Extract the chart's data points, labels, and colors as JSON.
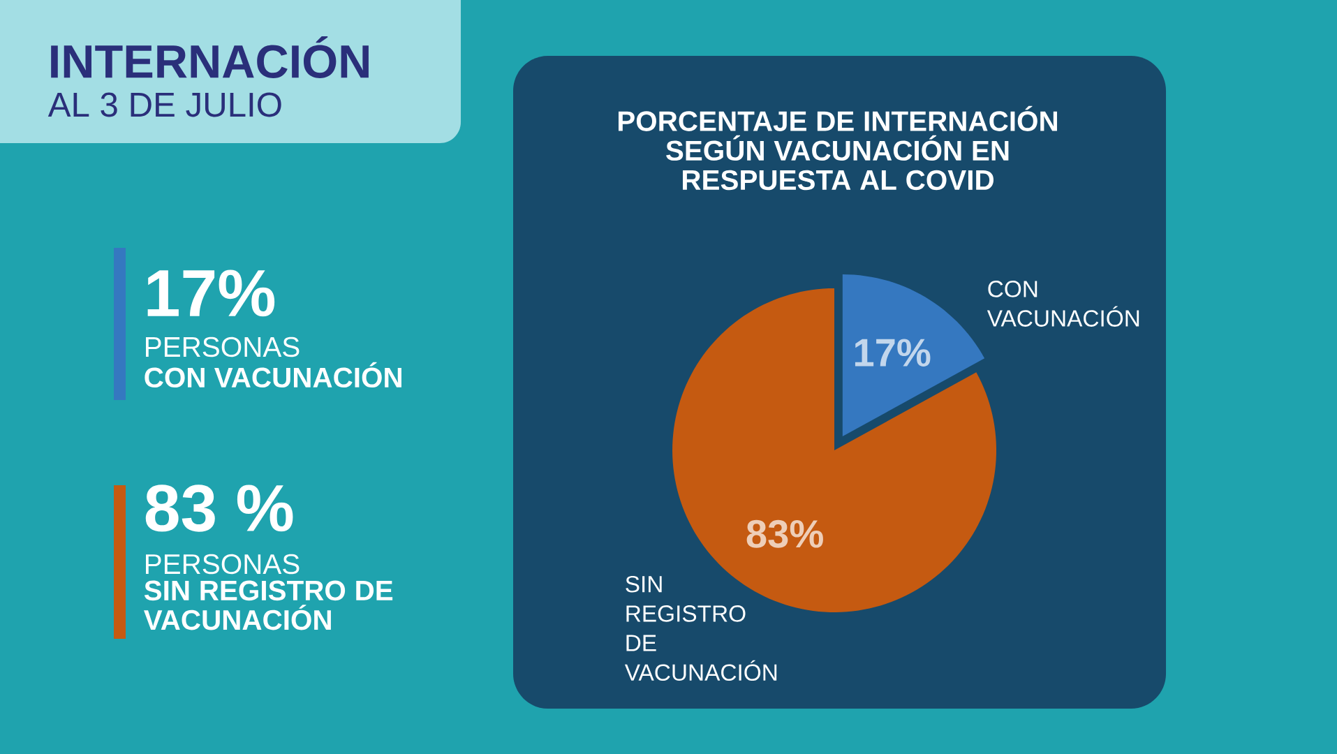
{
  "chart_data": {
    "type": "pie",
    "title": "PORCENTAJE DE INTERNACIÓN SEGÚN VACUNACIÓN EN RESPUESTA AL COVID",
    "categories": [
      "CON VACUNACIÓN",
      "SIN REGISTRO DE VACUNACIÓN"
    ],
    "values": [
      17,
      83
    ],
    "colors": [
      "#3578c0",
      "#c55a11"
    ],
    "value_labels": [
      "17%",
      "83%"
    ],
    "annotations": [
      "INTERNACIÓN",
      "AL 3 DE JULIO",
      "17%",
      "PERSONAS",
      "CON VACUNACIÓN",
      "83 %",
      "PERSONAS",
      "SIN REGISTRO DE VACUNACIÓN"
    ]
  }
}
